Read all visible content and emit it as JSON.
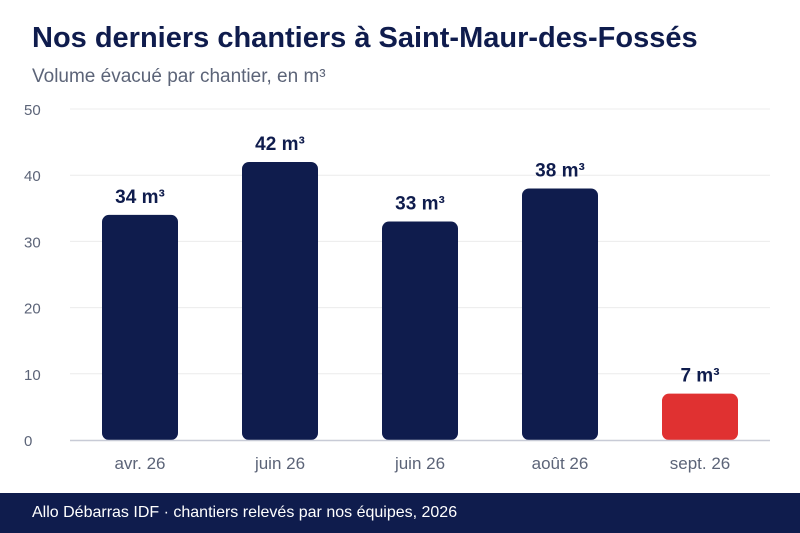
{
  "header": {
    "title": "Nos derniers chantiers à Saint-Maur-des-Fossés",
    "subtitle": "Volume évacué par chantier, en m³"
  },
  "footer": {
    "text": "Allo Débarras IDF · chantiers relevés par nos équipes, 2026"
  },
  "colors": {
    "bar_primary": "#0f1c4d",
    "bar_highlight": "#e03131",
    "value_label": "#0f1c4d",
    "axis_text": "#5c6478",
    "gridline": "#ececec"
  },
  "chart_data": {
    "type": "bar",
    "categories": [
      "avr. 26",
      "juin 26",
      "juin 26",
      "août 26",
      "sept. 26"
    ],
    "values": [
      34,
      42,
      33,
      38,
      7
    ],
    "data_labels": [
      "34 m³",
      "42 m³",
      "33 m³",
      "38 m³",
      "7 m³"
    ],
    "highlight_index": 4,
    "ylim": [
      0,
      50
    ],
    "yticks": [
      0,
      10,
      20,
      30,
      40,
      50
    ],
    "grid": true,
    "legend": "none"
  }
}
